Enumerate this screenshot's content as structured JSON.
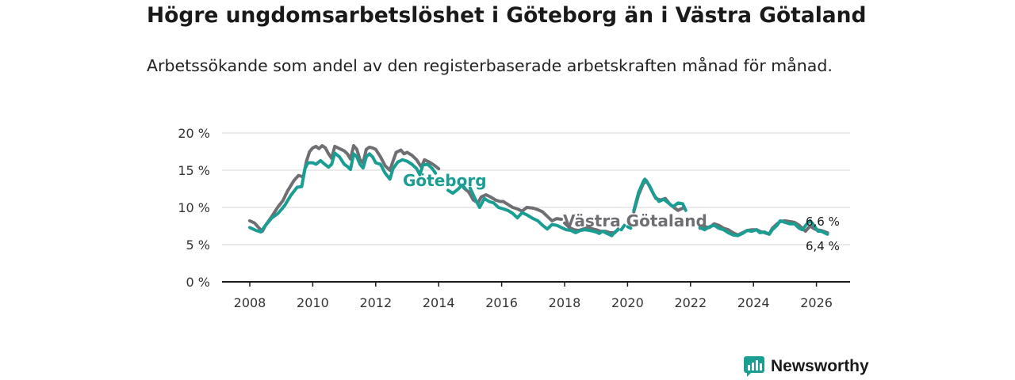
{
  "title": "Högre ungdomsarbetslöshet i Göteborg än i Västra Götaland",
  "subtitle": "Arbetssökande som andel av den registerbaserade arbetskraften månad för månad.",
  "brand": {
    "name": "Newsworthy",
    "icon": "newsworthy-logo-icon"
  },
  "colors": {
    "goteborg": "#1a9e93",
    "vastra": "#6e6e73",
    "grid": "#d6d6d6",
    "axis": "#1a1a1a"
  },
  "chart_data": {
    "type": "line",
    "title": "Högre ungdomsarbetslöshet i Göteborg än i Västra Götaland",
    "xlabel": "",
    "ylabel": "",
    "xlim": [
      2007.5,
      2027
    ],
    "ylim": [
      0,
      20
    ],
    "y_ticks": [
      0,
      5,
      10,
      15,
      20
    ],
    "y_tick_labels": [
      "0 %",
      "5 %",
      "10 %",
      "15 %",
      "20 %"
    ],
    "x_ticks": [
      2008,
      2010,
      2012,
      2014,
      2016,
      2018,
      2020,
      2022,
      2024,
      2026
    ],
    "x_tick_labels": [
      "2008",
      "2010",
      "2012",
      "2014",
      "2016",
      "2018",
      "2020",
      "2022",
      "2024",
      "2026"
    ],
    "grid": true,
    "annotations": {
      "goteborg_label": "Göteborg",
      "vastra_label": "Västra Götaland",
      "vastra_end_label": "6,6 %",
      "goteborg_end_label": "6,4 %"
    },
    "series": [
      {
        "name": "Göteborg",
        "color": "#1a9e93",
        "points": [
          [
            2008.0,
            7.3
          ],
          [
            2008.2,
            6.9
          ],
          [
            2008.35,
            6.7
          ],
          [
            2008.5,
            7.6
          ],
          [
            2008.7,
            8.6
          ],
          [
            2008.9,
            9.2
          ],
          [
            2009.1,
            10.2
          ],
          [
            2009.3,
            11.6
          ],
          [
            2009.5,
            12.7
          ],
          [
            2009.65,
            12.8
          ],
          [
            2009.75,
            15.2
          ],
          [
            2009.85,
            16.0
          ],
          [
            2010.0,
            16.0
          ],
          [
            2010.1,
            15.8
          ],
          [
            2010.25,
            16.3
          ],
          [
            2010.35,
            15.9
          ],
          [
            2010.5,
            15.4
          ],
          [
            2010.6,
            15.8
          ],
          [
            2010.7,
            17.3
          ],
          [
            2010.85,
            16.8
          ],
          [
            2011.0,
            15.8
          ],
          [
            2011.1,
            15.5
          ],
          [
            2011.2,
            15.1
          ],
          [
            2011.3,
            17.2
          ],
          [
            2011.4,
            16.8
          ],
          [
            2011.5,
            15.8
          ],
          [
            2011.6,
            15.3
          ],
          [
            2011.7,
            16.8
          ],
          [
            2011.8,
            17.2
          ],
          [
            2011.9,
            16.8
          ],
          [
            2012.0,
            16.0
          ],
          [
            2012.15,
            15.8
          ],
          [
            2012.3,
            14.6
          ],
          [
            2012.45,
            13.8
          ],
          [
            2012.55,
            15.2
          ],
          [
            2012.7,
            16.1
          ],
          [
            2012.85,
            16.4
          ],
          [
            2013.0,
            16.2
          ],
          [
            2013.15,
            15.8
          ],
          [
            2013.3,
            15.2
          ],
          [
            2013.4,
            14.4
          ],
          [
            2013.5,
            15.7
          ],
          [
            2013.65,
            15.8
          ],
          [
            2013.8,
            15.2
          ],
          [
            2013.9,
            14.6
          ]
        ],
        "segments": [
          [
            [
              2014.3,
              12.3
            ],
            [
              2014.45,
              11.9
            ],
            [
              2014.6,
              12.4
            ],
            [
              2014.75,
              13.0
            ],
            [
              2014.85,
              12.5
            ]
          ],
          [
            [
              2015.0,
              12.6
            ],
            [
              2015.15,
              11.2
            ],
            [
              2015.3,
              10.0
            ],
            [
              2015.45,
              11.2
            ],
            [
              2015.6,
              10.8
            ],
            [
              2015.75,
              10.6
            ],
            [
              2015.9,
              10.0
            ],
            [
              2016.05,
              9.8
            ],
            [
              2016.2,
              9.6
            ],
            [
              2016.35,
              9.2
            ],
            [
              2016.5,
              8.6
            ],
            [
              2016.65,
              9.3
            ],
            [
              2016.8,
              9.0
            ],
            [
              2017.0,
              8.5
            ],
            [
              2017.15,
              8.2
            ],
            [
              2017.3,
              7.6
            ],
            [
              2017.45,
              7.1
            ],
            [
              2017.6,
              7.7
            ],
            [
              2017.75,
              7.6
            ],
            [
              2017.9,
              7.3
            ],
            [
              2018.05,
              7.0
            ],
            [
              2018.2,
              6.9
            ],
            [
              2018.35,
              6.6
            ],
            [
              2018.5,
              6.9
            ],
            [
              2018.65,
              7.0
            ],
            [
              2018.8,
              6.9
            ],
            [
              2019.0,
              6.7
            ],
            [
              2019.1,
              6.5
            ],
            [
              2019.2,
              6.8
            ],
            [
              2019.35,
              6.5
            ],
            [
              2019.5,
              6.2
            ],
            [
              2019.6,
              6.7
            ],
            [
              2019.7,
              7.0
            ]
          ],
          [
            [
              2019.8,
              7.0
            ],
            [
              2019.9,
              7.6
            ]
          ],
          [
            [
              2020.0,
              7.4
            ],
            [
              2020.1,
              7.2
            ]
          ],
          [
            [
              2020.2,
              9.6
            ],
            [
              2020.35,
              12.0
            ],
            [
              2020.5,
              13.5
            ],
            [
              2020.55,
              13.8
            ],
            [
              2020.7,
              12.9
            ],
            [
              2020.85,
              11.6
            ],
            [
              2021.0,
              10.8
            ],
            [
              2021.15,
              11.1
            ],
            [
              2021.3,
              10.6
            ],
            [
              2021.45,
              10.1
            ],
            [
              2021.6,
              10.6
            ],
            [
              2021.75,
              10.5
            ],
            [
              2021.85,
              9.6
            ]
          ],
          [
            [
              2022.3,
              7.3
            ],
            [
              2022.45,
              7.0
            ],
            [
              2022.6,
              7.4
            ],
            [
              2022.75,
              7.6
            ],
            [
              2022.9,
              7.2
            ],
            [
              2023.05,
              7.0
            ],
            [
              2023.2,
              6.6
            ],
            [
              2023.35,
              6.3
            ],
            [
              2023.5,
              6.2
            ],
            [
              2023.65,
              6.5
            ],
            [
              2023.8,
              6.9
            ],
            [
              2023.95,
              6.8
            ],
            [
              2024.1,
              7.0
            ],
            [
              2024.2,
              6.6
            ],
            [
              2024.35,
              6.7
            ],
            [
              2024.5,
              6.4
            ],
            [
              2024.6,
              7.0
            ],
            [
              2024.75,
              7.6
            ],
            [
              2024.85,
              8.2
            ],
            [
              2025.0,
              8.0
            ],
            [
              2025.15,
              7.8
            ],
            [
              2025.3,
              7.8
            ],
            [
              2025.45,
              7.2
            ],
            [
              2025.55,
              7.0
            ],
            [
              2025.7,
              7.8
            ],
            [
              2025.8,
              8.2
            ],
            [
              2025.9,
              7.7
            ],
            [
              2026.05,
              6.8
            ],
            [
              2026.15,
              6.8
            ],
            [
              2026.25,
              6.6
            ],
            [
              2026.35,
              6.4
            ]
          ]
        ]
      },
      {
        "name": "Västra Götaland",
        "color": "#6e6e73",
        "points": [
          [
            2008.0,
            8.2
          ],
          [
            2008.15,
            7.9
          ],
          [
            2008.3,
            7.2
          ],
          [
            2008.4,
            6.8
          ],
          [
            2008.5,
            7.6
          ],
          [
            2008.7,
            8.8
          ],
          [
            2008.9,
            10.1
          ],
          [
            2009.05,
            10.9
          ],
          [
            2009.2,
            12.2
          ],
          [
            2009.4,
            13.6
          ],
          [
            2009.55,
            14.3
          ],
          [
            2009.7,
            14.1
          ],
          [
            2009.8,
            16.2
          ],
          [
            2009.9,
            17.5
          ],
          [
            2010.0,
            18.0
          ],
          [
            2010.1,
            18.2
          ],
          [
            2010.2,
            17.9
          ],
          [
            2010.3,
            18.3
          ],
          [
            2010.4,
            18.0
          ],
          [
            2010.5,
            17.2
          ],
          [
            2010.6,
            16.6
          ],
          [
            2010.7,
            18.2
          ],
          [
            2010.85,
            17.9
          ],
          [
            2011.0,
            17.6
          ],
          [
            2011.1,
            17.2
          ],
          [
            2011.2,
            16.5
          ],
          [
            2011.3,
            18.3
          ],
          [
            2011.4,
            17.8
          ],
          [
            2011.5,
            16.4
          ],
          [
            2011.6,
            16.0
          ],
          [
            2011.7,
            17.8
          ],
          [
            2011.8,
            18.1
          ],
          [
            2011.9,
            18.0
          ],
          [
            2012.0,
            17.8
          ],
          [
            2012.15,
            16.8
          ],
          [
            2012.3,
            15.6
          ],
          [
            2012.45,
            15.0
          ],
          [
            2012.55,
            16.2
          ],
          [
            2012.65,
            17.4
          ],
          [
            2012.8,
            17.7
          ],
          [
            2012.9,
            17.2
          ],
          [
            2013.0,
            17.4
          ],
          [
            2013.15,
            17.0
          ],
          [
            2013.3,
            16.4
          ],
          [
            2013.45,
            15.4
          ],
          [
            2013.55,
            16.4
          ],
          [
            2013.7,
            16.1
          ],
          [
            2013.85,
            15.7
          ],
          [
            2014.0,
            15.2
          ]
        ],
        "segments": [
          [
            [
              2014.8,
              12.6
            ],
            [
              2014.95,
              12.1
            ],
            [
              2015.1,
              11.0
            ],
            [
              2015.25,
              10.6
            ],
            [
              2015.35,
              11.4
            ],
            [
              2015.5,
              11.7
            ],
            [
              2015.65,
              11.4
            ],
            [
              2015.8,
              11.0
            ],
            [
              2015.95,
              10.8
            ],
            [
              2016.05,
              10.8
            ],
            [
              2016.2,
              10.4
            ],
            [
              2016.35,
              10.0
            ],
            [
              2016.5,
              9.8
            ],
            [
              2016.65,
              9.5
            ],
            [
              2016.8,
              10.0
            ],
            [
              2017.0,
              9.9
            ],
            [
              2017.15,
              9.7
            ],
            [
              2017.3,
              9.4
            ],
            [
              2017.45,
              8.8
            ],
            [
              2017.6,
              8.2
            ],
            [
              2017.75,
              8.5
            ],
            [
              2017.9,
              8.4
            ]
          ],
          [
            [
              2018.0,
              7.9
            ],
            [
              2018.15,
              7.3
            ],
            [
              2018.3,
              7.0
            ],
            [
              2018.45,
              6.9
            ],
            [
              2018.6,
              7.1
            ],
            [
              2018.75,
              7.3
            ],
            [
              2018.9,
              7.1
            ],
            [
              2019.0,
              7.0
            ],
            [
              2019.15,
              6.8
            ],
            [
              2019.3,
              6.8
            ],
            [
              2019.45,
              6.6
            ],
            [
              2019.6,
              6.6
            ],
            [
              2019.7,
              7.1
            ]
          ],
          [
            [
              2020.2,
              9.4
            ],
            [
              2020.35,
              11.7
            ],
            [
              2020.5,
              13.2
            ],
            [
              2020.6,
              13.6
            ],
            [
              2020.75,
              12.4
            ],
            [
              2020.9,
              11.2
            ],
            [
              2021.05,
              11.0
            ],
            [
              2021.2,
              11.2
            ],
            [
              2021.35,
              10.4
            ],
            [
              2021.5,
              9.9
            ],
            [
              2021.6,
              9.6
            ],
            [
              2021.75,
              9.9
            ]
          ],
          [
            [
              2022.3,
              7.2
            ],
            [
              2022.45,
              7.4
            ],
            [
              2022.6,
              7.3
            ],
            [
              2022.75,
              7.8
            ],
            [
              2022.9,
              7.6
            ],
            [
              2023.05,
              7.2
            ],
            [
              2023.2,
              7.0
            ],
            [
              2023.35,
              6.6
            ],
            [
              2023.5,
              6.3
            ],
            [
              2023.65,
              6.6
            ],
            [
              2023.8,
              6.9
            ],
            [
              2023.95,
              7.0
            ],
            [
              2024.1,
              7.0
            ],
            [
              2024.2,
              6.8
            ],
            [
              2024.35,
              6.6
            ],
            [
              2024.5,
              6.4
            ],
            [
              2024.6,
              7.2
            ],
            [
              2024.75,
              7.8
            ],
            [
              2024.85,
              8.1
            ],
            [
              2025.0,
              8.2
            ],
            [
              2025.15,
              8.1
            ],
            [
              2025.3,
              8.0
            ],
            [
              2025.45,
              7.6
            ],
            [
              2025.55,
              7.2
            ],
            [
              2025.65,
              6.8
            ],
            [
              2025.8,
              7.5
            ],
            [
              2025.9,
              7.2
            ],
            [
              2026.0,
              7.0
            ],
            [
              2026.15,
              6.9
            ],
            [
              2026.35,
              6.6
            ]
          ]
        ]
      }
    ]
  }
}
